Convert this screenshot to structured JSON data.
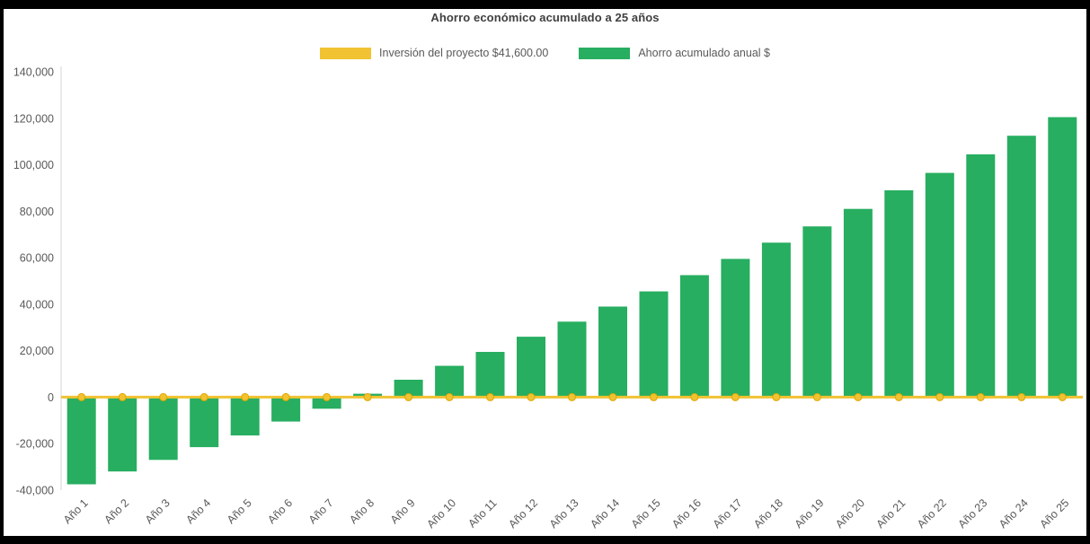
{
  "frame": {
    "page_background": "#000000",
    "panel_background": "#ffffff"
  },
  "chart_data": {
    "type": "bar",
    "title": "Ahorro económico acumulado a 25 años",
    "categories": [
      "Año 1",
      "Año 2",
      "Año 3",
      "Año 4",
      "Año 5",
      "Año 6",
      "Año 7",
      "Año 8",
      "Año 9",
      "Año 10",
      "Año 11",
      "Año 12",
      "Año 13",
      "Año 14",
      "Año 15",
      "Año 16",
      "Año 17",
      "Año 18",
      "Año 19",
      "Año 20",
      "Año 21",
      "Año 22",
      "Año 23",
      "Año 24",
      "Año 25"
    ],
    "series": [
      {
        "name": "Inversión del proyecto $41,600.00",
        "type": "line",
        "color": "#f1c232",
        "marker_stroke": "#dfa700",
        "values": [
          0,
          0,
          0,
          0,
          0,
          0,
          0,
          0,
          0,
          0,
          0,
          0,
          0,
          0,
          0,
          0,
          0,
          0,
          0,
          0,
          0,
          0,
          0,
          0,
          0
        ]
      },
      {
        "name": "Ahorro acumulado anual $",
        "type": "bar",
        "color": "#27ae60",
        "values": [
          -37500,
          -32000,
          -27000,
          -21500,
          -16500,
          -10500,
          -5000,
          1500,
          7500,
          13500,
          19500,
          26000,
          32500,
          39000,
          45500,
          52500,
          59500,
          66500,
          73500,
          81000,
          89000,
          96500,
          104500,
          112500,
          120500
        ]
      }
    ],
    "ylim": [
      -40000,
      140000
    ],
    "ytick_interval": 20000,
    "grid": false,
    "legend_position": "top",
    "axis_text_color": "#595959",
    "title_color": "#3f3f3f",
    "xlabel": "",
    "ylabel": ""
  }
}
